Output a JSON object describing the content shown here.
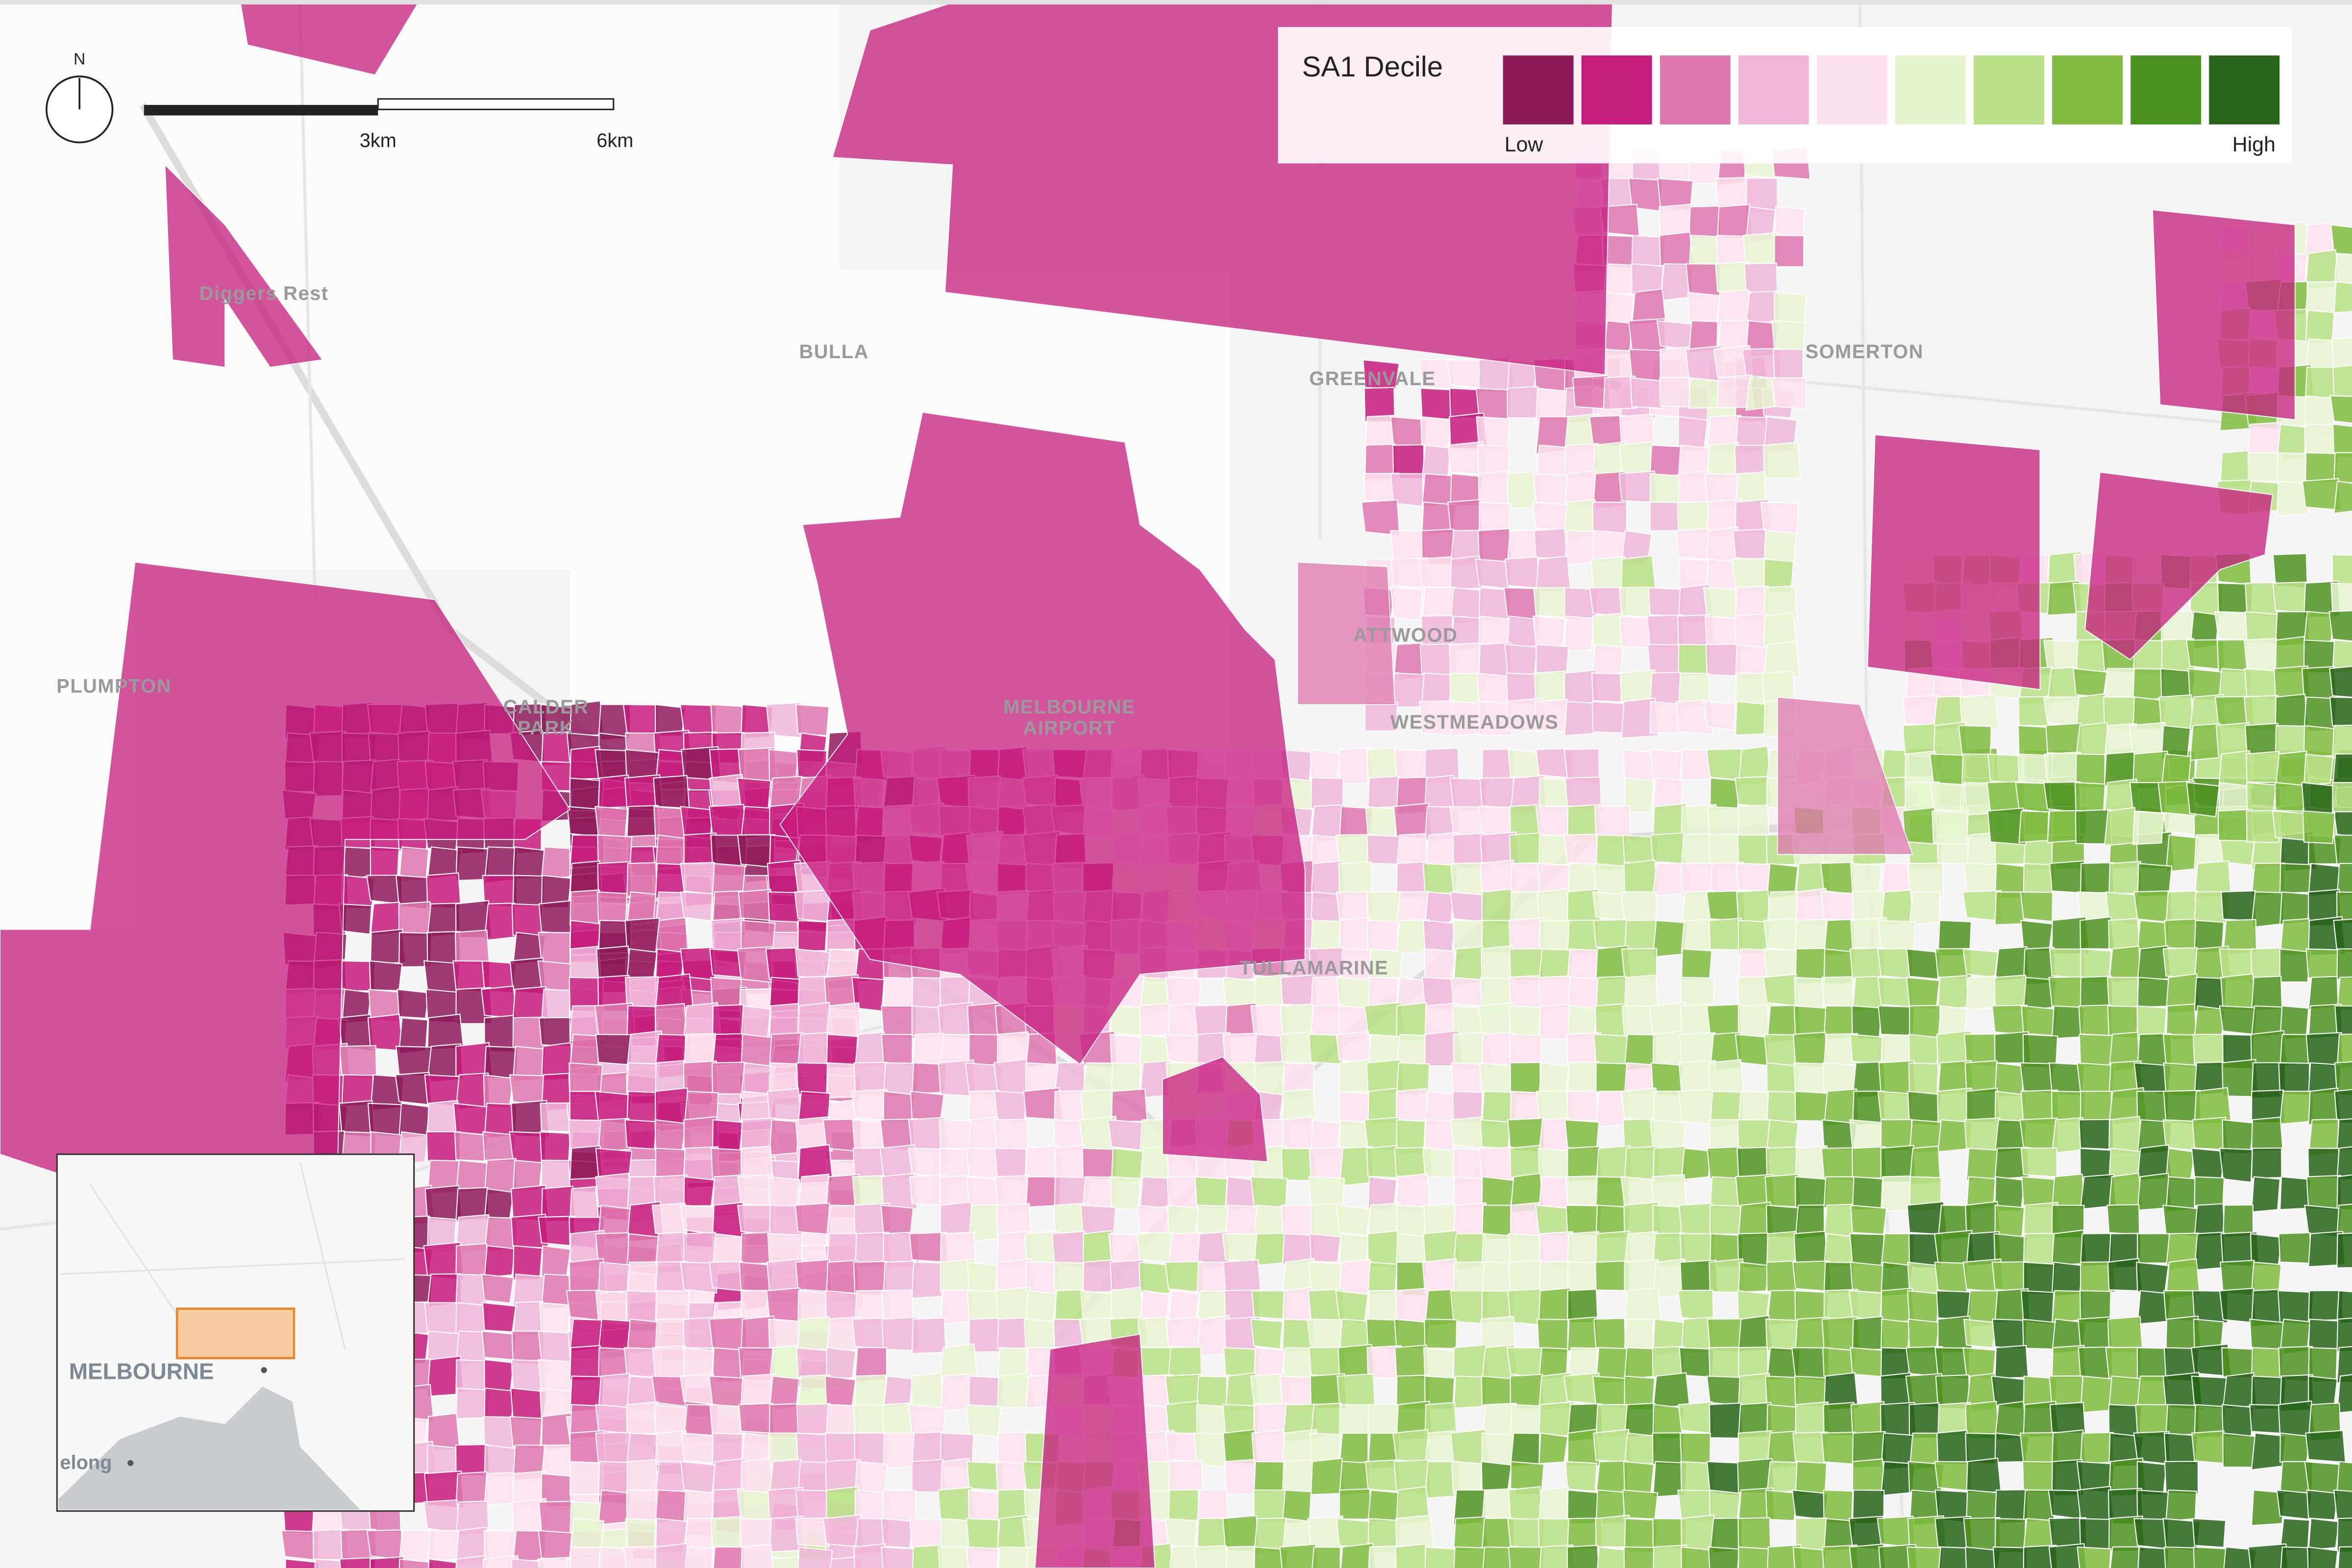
{
  "compass": {
    "label": "N"
  },
  "scale_bar": {
    "labels": [
      "3km",
      "6km"
    ]
  },
  "legend": {
    "title": "SA1 Decile",
    "low_label": "Low",
    "high_label": "High",
    "colors": [
      "#8e1a5a",
      "#c51b7d",
      "#de77ae",
      "#f1b6da",
      "#fde0ef",
      "#e6f5d0",
      "#b8e186",
      "#7fbc41",
      "#4d9221",
      "#276419"
    ]
  },
  "places": [
    "Diggers Rest",
    "BULLA",
    "GREENVALE",
    "SOMERTON",
    "PLUMPTON",
    "CALDER PARK",
    "MELBOURNE AIRPORT",
    "ATTWOOD",
    "WESTMEADOWS",
    "TULLAMARINE"
  ],
  "inset": {
    "label": "MELBOURNE",
    "secondary_label": "elong"
  }
}
